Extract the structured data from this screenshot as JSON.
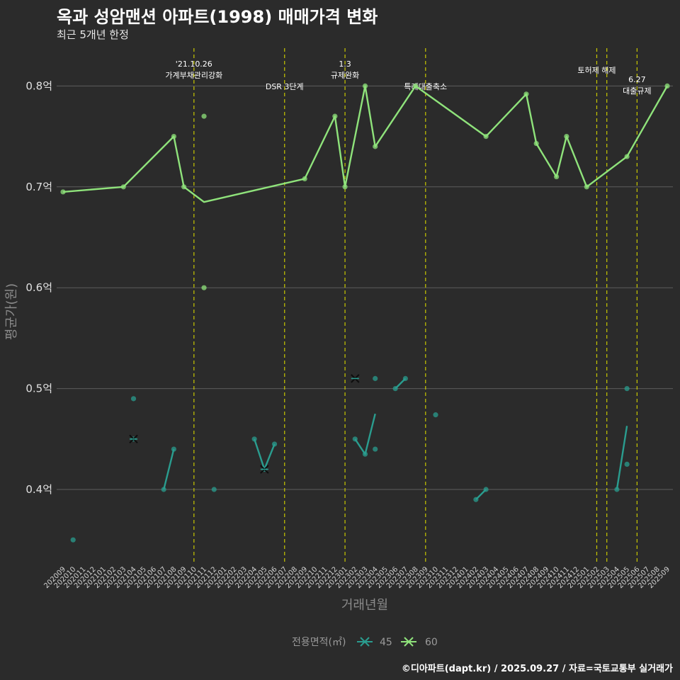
{
  "header": {
    "title": "옥과 성암맨션 아파트(1998) 매매가격 변화",
    "subtitle": "최근 5개년 한정"
  },
  "footer": {
    "credit": "©디아파트(dapt.kr) / 2025.09.27 / 자료=국토교통부 실거래가"
  },
  "colors": {
    "s45": "#2a9d8f",
    "s60": "#8fe37b",
    "vline": "#c8c800",
    "grid": "#5c5c5c",
    "bg": "#2b2b2b"
  },
  "chart_data": {
    "type": "line",
    "title": "옥과 성암맨션 아파트(1998) 매매가격 변화",
    "xlabel": "거래년월",
    "ylabel": "평균가(원)",
    "ylim": [
      0.33,
      0.83
    ],
    "yticks": [
      {
        "value": 0.4,
        "label": "0.4억"
      },
      {
        "value": 0.5,
        "label": "0.5억"
      },
      {
        "value": 0.6,
        "label": "0.6억"
      },
      {
        "value": 0.7,
        "label": "0.7억"
      },
      {
        "value": 0.8,
        "label": "0.8억"
      }
    ],
    "categories": [
      "202009",
      "202010",
      "202011",
      "202012",
      "202101",
      "202102",
      "202103",
      "202104",
      "202105",
      "202106",
      "202107",
      "202108",
      "202109",
      "202110",
      "202111",
      "202112",
      "202201",
      "202202",
      "202203",
      "202204",
      "202205",
      "202206",
      "202207",
      "202208",
      "202209",
      "202210",
      "202211",
      "202212",
      "202301",
      "202302",
      "202303",
      "202304",
      "202305",
      "202306",
      "202307",
      "202308",
      "202309",
      "202310",
      "202311",
      "202312",
      "202401",
      "202402",
      "202403",
      "202404",
      "202405",
      "202406",
      "202407",
      "202408",
      "202409",
      "202410",
      "202411",
      "202412",
      "202501",
      "202502",
      "202503",
      "202504",
      "202505",
      "202506",
      "202507",
      "202508",
      "202509"
    ],
    "legend": {
      "title": "전용면적(㎡)",
      "entries": [
        "45",
        "60"
      ]
    },
    "events": [
      {
        "x": 13,
        "lines": [
          "'21.10.26",
          "가계부채관리강화"
        ]
      },
      {
        "x": 22,
        "lines": [
          "DSR 3단계"
        ]
      },
      {
        "x": 28,
        "lines": [
          "1.3",
          "규제완화"
        ]
      },
      {
        "x": 36,
        "lines": [
          "특례대출축소"
        ]
      },
      {
        "x": 53,
        "lines": [
          "토허제 해제"
        ]
      },
      {
        "x": 54,
        "lines": []
      },
      {
        "x": 57,
        "lines": [
          "6.27",
          "대출규제"
        ]
      }
    ],
    "series": [
      {
        "name": "60",
        "line": [
          [
            0,
            0.695
          ],
          [
            6,
            0.7
          ],
          [
            11,
            0.75
          ],
          [
            12,
            0.7
          ],
          [
            14,
            0.685
          ],
          [
            24,
            0.708
          ],
          [
            27,
            0.77
          ],
          [
            28,
            0.7
          ],
          [
            30,
            0.8
          ],
          [
            31,
            0.74
          ],
          [
            35,
            0.8
          ],
          [
            42,
            0.75
          ],
          [
            46,
            0.792
          ],
          [
            47,
            0.743
          ],
          [
            49,
            0.71
          ],
          [
            50,
            0.75
          ],
          [
            52,
            0.7
          ],
          [
            56,
            0.73
          ],
          [
            60,
            0.8
          ]
        ],
        "points": [
          [
            0,
            0.695
          ],
          [
            6,
            0.7
          ],
          [
            11,
            0.75
          ],
          [
            12,
            0.7
          ],
          [
            14,
            0.77
          ],
          [
            14,
            0.6
          ],
          [
            24,
            0.708
          ],
          [
            27,
            0.77
          ],
          [
            28,
            0.7
          ],
          [
            30,
            0.8
          ],
          [
            31,
            0.74
          ],
          [
            35,
            0.8
          ],
          [
            42,
            0.75
          ],
          [
            46,
            0.792
          ],
          [
            47,
            0.743
          ],
          [
            49,
            0.71
          ],
          [
            50,
            0.75
          ],
          [
            52,
            0.7
          ],
          [
            56,
            0.73
          ],
          [
            60,
            0.8
          ]
        ],
        "crosses": []
      },
      {
        "name": "45",
        "segments": [
          [
            [
              10,
              0.4
            ],
            [
              11,
              0.44
            ]
          ],
          [
            [
              19,
              0.45
            ],
            [
              20,
              0.42
            ],
            [
              21,
              0.445
            ]
          ],
          [
            [
              29,
              0.45
            ],
            [
              30,
              0.435
            ],
            [
              31,
              0.475
            ]
          ],
          [
            [
              33,
              0.5
            ],
            [
              34,
              0.51
            ]
          ],
          [
            [
              41,
              0.39
            ],
            [
              42,
              0.4
            ]
          ],
          [
            [
              55,
              0.4
            ],
            [
              56,
              0.463
            ]
          ]
        ],
        "points": [
          [
            1,
            0.35
          ],
          [
            7,
            0.49
          ],
          [
            7,
            0.45
          ],
          [
            10,
            0.4
          ],
          [
            11,
            0.44
          ],
          [
            15,
            0.4
          ],
          [
            19,
            0.45
          ],
          [
            20,
            0.42
          ],
          [
            21,
            0.445
          ],
          [
            29,
            0.45
          ],
          [
            30,
            0.435
          ],
          [
            31,
            0.51
          ],
          [
            31,
            0.44
          ],
          [
            33,
            0.5
          ],
          [
            34,
            0.51
          ],
          [
            37,
            0.474
          ],
          [
            41,
            0.39
          ],
          [
            42,
            0.4
          ],
          [
            55,
            0.4
          ],
          [
            56,
            0.5
          ],
          [
            56,
            0.425
          ]
        ],
        "crosses": [
          [
            7,
            0.45
          ],
          [
            20,
            0.42
          ],
          [
            29,
            0.51
          ]
        ]
      }
    ]
  }
}
